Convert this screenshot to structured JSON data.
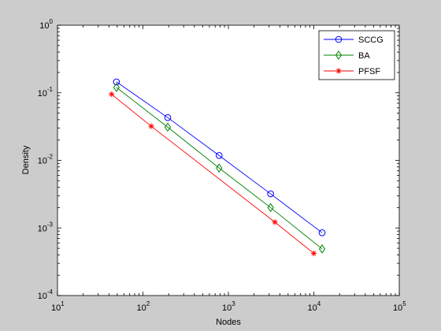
{
  "chart_data": {
    "type": "line",
    "title": "",
    "xlabel": "Nodes",
    "ylabel": "Density",
    "xscale": "log",
    "yscale": "log",
    "xlim": [
      10,
      100000
    ],
    "ylim": [
      0.0001,
      1
    ],
    "grid": false,
    "legend_position": "top-right",
    "x_ticks": [
      {
        "base": "10",
        "exp": "1"
      },
      {
        "base": "10",
        "exp": "2"
      },
      {
        "base": "10",
        "exp": "3"
      },
      {
        "base": "10",
        "exp": "4"
      },
      {
        "base": "10",
        "exp": "5"
      }
    ],
    "y_ticks": [
      {
        "base": "10",
        "exp": "-4"
      },
      {
        "base": "10",
        "exp": "-3"
      },
      {
        "base": "10",
        "exp": "-2"
      },
      {
        "base": "10",
        "exp": "-1"
      },
      {
        "base": "10",
        "exp": "0"
      }
    ],
    "series": [
      {
        "name": "SCCG",
        "color": "#0000ff",
        "marker": "circle",
        "x": [
          49,
          195,
          780,
          3120,
          12500
        ],
        "y": [
          0.145,
          0.043,
          0.0118,
          0.0032,
          0.00085
        ]
      },
      {
        "name": "BA",
        "color": "#008000",
        "marker": "diamond",
        "x": [
          49,
          195,
          780,
          3120,
          12500
        ],
        "y": [
          0.12,
          0.031,
          0.0077,
          0.002,
          0.00049
        ]
      },
      {
        "name": "PFSF",
        "color": "#ff0000",
        "marker": "star",
        "x": [
          43,
          125,
          3500,
          10000
        ],
        "y": [
          0.095,
          0.032,
          0.00122,
          0.00042
        ]
      }
    ]
  }
}
